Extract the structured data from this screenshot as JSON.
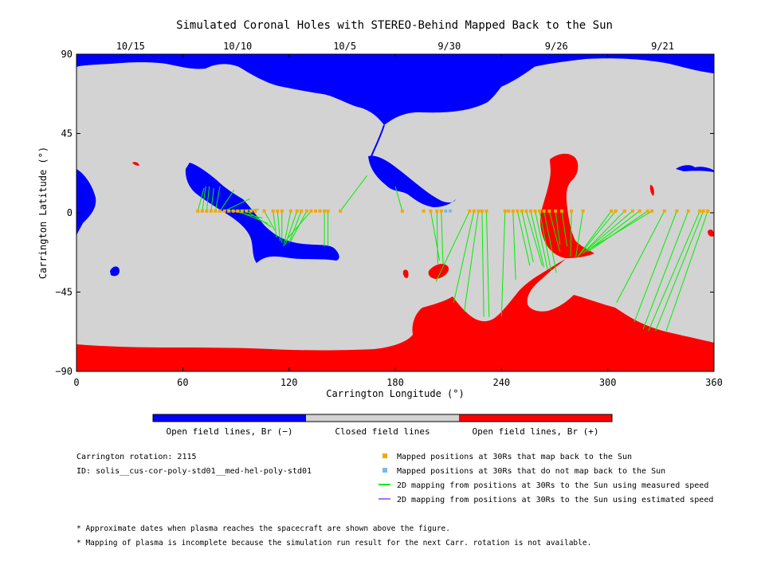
{
  "chart_data": {
    "type": "map",
    "title": "Simulated Coronal Holes with STEREO-Behind Mapped Back to the Sun",
    "xlabel": "Carrington Longitude (°)",
    "ylabel": "Carrington Latitude (°)",
    "xlim": [
      0,
      360
    ],
    "ylim": [
      -90,
      90
    ],
    "x_ticks": [
      0,
      60,
      120,
      180,
      240,
      300,
      360
    ],
    "y_ticks": [
      90,
      45,
      0,
      -45,
      -90
    ],
    "x_tick_labels": [
      "0",
      "60",
      "120",
      "180",
      "240",
      "300",
      "360"
    ],
    "y_tick_labels": [
      "90",
      "45",
      "0",
      "−45",
      "−90"
    ],
    "date_ticks": [
      {
        "label": "10/15",
        "lon": 30.5
      },
      {
        "label": "10/10",
        "lon": 91
      },
      {
        "label": "10/5",
        "lon": 151.5
      },
      {
        "label": "9/30",
        "lon": 210.5
      },
      {
        "label": "9/26",
        "lon": 271
      },
      {
        "label": "9/21",
        "lon": 331
      }
    ],
    "colorbar": [
      {
        "label": "Open field lines, Br (−)",
        "color": "#0000ff"
      },
      {
        "label": "Closed field lines",
        "color": "#d3d3d3"
      },
      {
        "label": "Open field lines, Br (+)",
        "color": "#ff0000"
      }
    ],
    "mapped_points_lon": [
      68.5,
      71,
      73.5,
      76,
      78.5,
      81,
      83.5,
      86,
      88.5,
      91,
      93.5,
      96,
      98.5,
      101,
      106,
      111,
      113.5,
      116,
      121,
      124.5,
      127,
      130,
      132.5,
      135,
      137.5,
      140,
      142,
      149,
      184,
      196,
      200,
      203.5,
      206,
      222,
      224.5,
      227,
      229,
      231.5,
      242,
      244,
      246.5,
      249,
      251.5,
      254,
      256.5,
      259,
      261.5,
      264,
      267,
      270.5,
      274,
      279.5,
      286,
      302,
      304.5,
      309.5,
      314,
      318,
      322.5,
      325,
      332,
      339,
      345.5,
      352,
      354,
      356.5
    ],
    "unmapped_points_lon": [
      208.5,
      211
    ],
    "mapping_lines_measured": [
      [
        [
          68.5,
          1
        ],
        [
          72,
          14
        ]
      ],
      [
        [
          71,
          1
        ],
        [
          73,
          15
        ]
      ],
      [
        [
          73.5,
          1
        ],
        [
          75,
          15
        ]
      ],
      [
        [
          76,
          1
        ],
        [
          77.5,
          14
        ]
      ],
      [
        [
          78.5,
          1
        ],
        [
          81,
          15
        ]
      ],
      [
        [
          81,
          1
        ],
        [
          89,
          13
        ]
      ],
      [
        [
          83.5,
          1
        ],
        [
          98,
          8
        ]
      ],
      [
        [
          86,
          1
        ],
        [
          103,
          2
        ]
      ],
      [
        [
          88.5,
          1
        ],
        [
          105,
          -3
        ]
      ],
      [
        [
          91,
          1
        ],
        [
          108,
          -6
        ]
      ],
      [
        [
          96,
          1
        ],
        [
          110,
          -8
        ]
      ],
      [
        [
          106,
          1
        ],
        [
          112,
          -10
        ]
      ],
      [
        [
          111,
          1
        ],
        [
          113,
          -14
        ]
      ],
      [
        [
          113.5,
          1
        ],
        [
          115,
          -16
        ]
      ],
      [
        [
          116,
          1
        ],
        [
          116,
          -17
        ]
      ],
      [
        [
          121,
          1
        ],
        [
          117,
          -19
        ]
      ],
      [
        [
          124.5,
          1
        ],
        [
          118,
          -18
        ]
      ],
      [
        [
          127,
          1
        ],
        [
          120,
          -17
        ]
      ],
      [
        [
          130,
          1
        ],
        [
          121,
          -16
        ]
      ],
      [
        [
          132.5,
          1
        ],
        [
          118,
          -16
        ]
      ],
      [
        [
          140,
          1
        ],
        [
          140,
          -19
        ]
      ],
      [
        [
          142,
          1
        ],
        [
          142,
          -19
        ]
      ],
      [
        [
          149,
          1
        ],
        [
          164,
          21
        ]
      ],
      [
        [
          184,
          1
        ],
        [
          180,
          15
        ]
      ],
      [
        [
          200,
          1
        ],
        [
          205,
          -27
        ]
      ],
      [
        [
          203.5,
          1
        ],
        [
          204,
          -29
        ]
      ],
      [
        [
          206,
          1
        ],
        [
          207,
          -29
        ]
      ],
      [
        [
          222,
          1
        ],
        [
          203,
          -39
        ]
      ],
      [
        [
          224.5,
          1
        ],
        [
          213,
          -51
        ]
      ],
      [
        [
          227,
          1
        ],
        [
          219,
          -56
        ]
      ],
      [
        [
          229,
          1
        ],
        [
          230,
          -59
        ]
      ],
      [
        [
          231.5,
          1
        ],
        [
          233,
          -59
        ]
      ],
      [
        [
          242,
          1
        ],
        [
          240,
          -59
        ]
      ],
      [
        [
          246.5,
          1
        ],
        [
          248,
          -38
        ]
      ],
      [
        [
          249,
          1
        ],
        [
          256,
          -30
        ]
      ],
      [
        [
          251.5,
          1
        ],
        [
          258,
          -28
        ]
      ],
      [
        [
          254,
          1
        ],
        [
          263,
          -30
        ]
      ],
      [
        [
          256.5,
          1
        ],
        [
          264,
          -31
        ]
      ],
      [
        [
          259,
          1
        ],
        [
          266,
          -32
        ]
      ],
      [
        [
          261.5,
          1
        ],
        [
          268,
          -33
        ]
      ],
      [
        [
          264,
          1
        ],
        [
          271,
          -34
        ]
      ],
      [
        [
          267,
          1
        ],
        [
          273,
          -22
        ]
      ],
      [
        [
          270.5,
          1
        ],
        [
          273,
          -18
        ]
      ],
      [
        [
          274,
          1
        ],
        [
          277,
          -19
        ]
      ],
      [
        [
          279.5,
          1
        ],
        [
          279,
          -25
        ]
      ],
      [
        [
          286,
          1
        ],
        [
          282,
          -25
        ]
      ],
      [
        [
          302,
          1
        ],
        [
          283,
          -25
        ]
      ],
      [
        [
          304.5,
          1
        ],
        [
          284,
          -24
        ]
      ],
      [
        [
          309.5,
          1
        ],
        [
          286,
          -23
        ]
      ],
      [
        [
          314,
          1
        ],
        [
          287,
          -22
        ]
      ],
      [
        [
          318,
          1
        ],
        [
          288,
          -22
        ]
      ],
      [
        [
          322.5,
          1
        ],
        [
          289,
          -22
        ]
      ],
      [
        [
          325,
          1
        ],
        [
          289,
          -21
        ]
      ],
      [
        [
          332,
          1
        ],
        [
          305,
          -51
        ]
      ],
      [
        [
          339,
          1
        ],
        [
          315,
          -62
        ]
      ],
      [
        [
          345.5,
          1
        ],
        [
          320,
          -66
        ]
      ],
      [
        [
          352,
          1
        ],
        [
          323,
          -67
        ]
      ],
      [
        [
          354,
          1
        ],
        [
          327,
          -67
        ]
      ],
      [
        [
          356.5,
          1
        ],
        [
          333,
          -67
        ]
      ]
    ],
    "info": {
      "rotation": "Carrington rotation: 2115",
      "id": "ID: solis__cus-cor-poly-std01__med-hel-poly-std01"
    },
    "legend": [
      {
        "label": "Mapped positions at 30Rs that map back to the Sun",
        "color": "#f5a700",
        "kind": "square"
      },
      {
        "label": "Mapped positions at 30Rs that do not map back to the Sun",
        "color": "#7ab8f0",
        "kind": "square"
      },
      {
        "label": "2D mapping from positions at 30Rs to the Sun using measured speed",
        "color": "#00ee00",
        "kind": "line"
      },
      {
        "label": "2D mapping from positions at 30Rs to the Sun using estimated speed",
        "color": "#b070f0",
        "kind": "line"
      }
    ],
    "notes": [
      "* Approximate dates when plasma reaches the spacecraft are shown above the figure.",
      "* Mapping of plasma is incomplete because the simulation run result for the next Carr. rotation is not available."
    ],
    "colors": {
      "closed": "#d3d3d3",
      "open_negative": "#0000ff",
      "open_positive": "#ff0000",
      "mapped": "#f5a700",
      "unmapped": "#7ab8f0",
      "measured": "#00ee00",
      "estimated": "#b070f0"
    }
  }
}
